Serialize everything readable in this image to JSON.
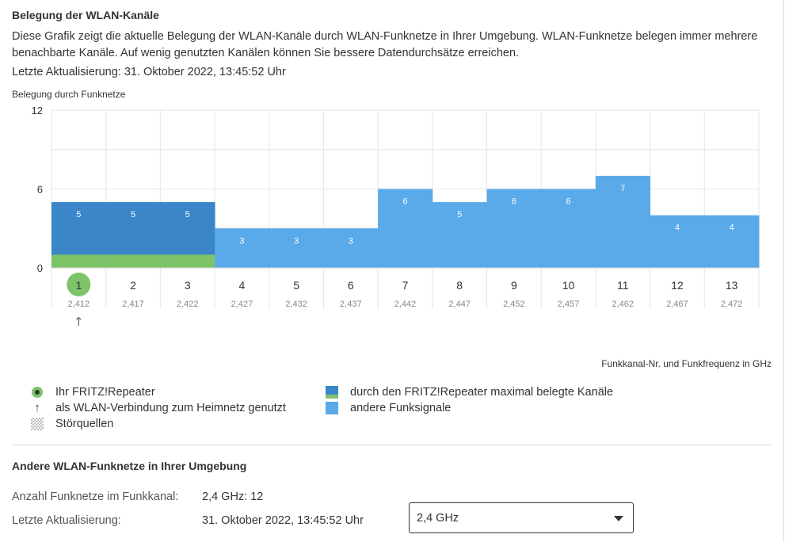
{
  "title": "Belegung der WLAN-Kanäle",
  "description": "Diese Grafik zeigt die aktuelle Belegung der WLAN-Kanäle durch WLAN-Funknetze in Ihrer Umgebung. WLAN-Funknetze belegen immer mehrere benachbarte Kanäle. Auf wenig genutzten Kanälen können Sie bessere Datendurchsätze erreichen.",
  "last_update": "Letzte Aktualisierung: 31. Oktober 2022, 13:45:52 Uhr",
  "chart_data": {
    "type": "bar",
    "ylabel": "Belegung durch Funknetze",
    "xlabel": "Funkkanal-Nr. und Funkfrequenz in GHz",
    "ylim": [
      0,
      12
    ],
    "yticks": [
      "0",
      "6",
      "12"
    ],
    "categories": [
      "1",
      "2",
      "3",
      "4",
      "5",
      "6",
      "7",
      "8",
      "9",
      "10",
      "11",
      "12",
      "13"
    ],
    "frequencies": [
      "2,412",
      "2,417",
      "2,422",
      "2,427",
      "2,432",
      "2,437",
      "2,442",
      "2,447",
      "2,452",
      "2,457",
      "2,462",
      "2,467",
      "2,472"
    ],
    "values": [
      5,
      5,
      5,
      3,
      3,
      3,
      6,
      5,
      6,
      6,
      7,
      4,
      4
    ],
    "repeater_max_channels": [
      1,
      2,
      3
    ],
    "repeater_channel": "1",
    "uplink_marker_channel": "1",
    "repeater_band_value": 1,
    "grid": true,
    "colors": {
      "repeater_band": "#3a86c8",
      "other_signals": "#5aaaea",
      "repeater_line": "#7dc468",
      "grid": "#e6e6e6"
    }
  },
  "legend": {
    "repeater": "Ihr FRITZ!Repeater",
    "uplink": "als WLAN-Verbindung zum Heimnetz genutzt",
    "uplink_icon": "↑",
    "noise": "Störquellen",
    "max_band": "durch den FRITZ!Repeater maximal belegte Kanäle",
    "other": "andere Funksignale"
  },
  "networks": {
    "title": "Andere WLAN-Funknetze in Ihrer Umgebung",
    "count_label": "Anzahl Funknetze im Funkkanal:",
    "count_value": "2,4 GHz: 12",
    "updated_label": "Letzte Aktualisierung:",
    "updated_value": "31. Oktober 2022, 13:45:52 Uhr",
    "band_select": "2,4 GHz"
  }
}
